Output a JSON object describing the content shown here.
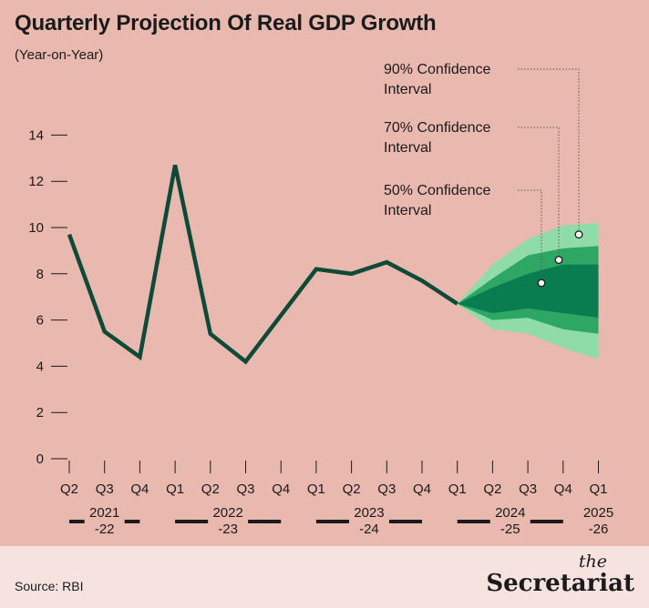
{
  "title": "Quarterly Projection Of Real GDP Growth",
  "subtitle": "(Year-on-Year)",
  "source": "Source: RBI",
  "brand": {
    "the": "the",
    "name": "Secretariat"
  },
  "colors": {
    "background": "#e9b8ae",
    "line": "#0d4a38",
    "ci90": "#8fdca8",
    "ci70": "#2ea764",
    "ci50": "#0a7d50",
    "axis": "#1b1b1b",
    "footer": "#f6e3e0"
  },
  "chart_data": {
    "type": "line",
    "title": "Quarterly Projection Of Real GDP Growth",
    "subtitle": "(Year-on-Year)",
    "ylim": [
      0,
      14
    ],
    "yticks": [
      0,
      2,
      4,
      6,
      8,
      10,
      12,
      14
    ],
    "categories": [
      "Q2",
      "Q3",
      "Q4",
      "Q1",
      "Q2",
      "Q3",
      "Q4",
      "Q1",
      "Q2",
      "Q3",
      "Q4",
      "Q1",
      "Q2",
      "Q3",
      "Q4",
      "Q1"
    ],
    "fiscal_years": [
      {
        "label_lines": [
          "2021",
          "-22"
        ],
        "start": 0,
        "end": 2
      },
      {
        "label_lines": [
          "2022",
          "-23"
        ],
        "start": 3,
        "end": 6
      },
      {
        "label_lines": [
          "2023",
          "-24"
        ],
        "start": 7,
        "end": 10
      },
      {
        "label_lines": [
          "2024",
          "-25"
        ],
        "start": 11,
        "end": 14
      },
      {
        "label_lines": [
          "2025",
          "-26"
        ],
        "start": 15,
        "end": 15
      }
    ],
    "series": [
      {
        "values": [
          9.7,
          5.5,
          4.4,
          12.7,
          5.4,
          4.2,
          6.2,
          8.2,
          8.0,
          8.5,
          7.7,
          6.7,
          null,
          null,
          null,
          null
        ]
      }
    ],
    "bands": [
      {
        "name": "90% Confidence Interval",
        "start_index": 11,
        "lower": [
          6.7,
          5.6,
          5.4,
          4.8,
          4.3
        ],
        "upper": [
          6.7,
          8.4,
          9.5,
          10.1,
          10.2
        ]
      },
      {
        "name": "70% Confidence Interval",
        "start_index": 11,
        "lower": [
          6.7,
          6.0,
          6.1,
          5.6,
          5.4
        ],
        "upper": [
          6.7,
          7.8,
          8.8,
          9.1,
          9.2
        ]
      },
      {
        "name": "50% Confidence Interval",
        "start_index": 11,
        "lower": [
          6.7,
          6.3,
          6.5,
          6.3,
          6.1
        ],
        "upper": [
          6.7,
          7.4,
          8.0,
          8.4,
          8.4
        ]
      }
    ],
    "annotations": [
      {
        "lines": [
          "90% Confidence",
          "Interval"
        ],
        "point": {
          "x_index": 14.5,
          "y": 9.7
        }
      },
      {
        "lines": [
          "70% Confidence",
          "Interval"
        ],
        "point": {
          "x_index": 14.0,
          "y": 8.6
        }
      },
      {
        "lines": [
          "50% Confidence",
          "Interval"
        ],
        "point": {
          "x_index": 13.4,
          "y": 7.6
        }
      }
    ]
  }
}
